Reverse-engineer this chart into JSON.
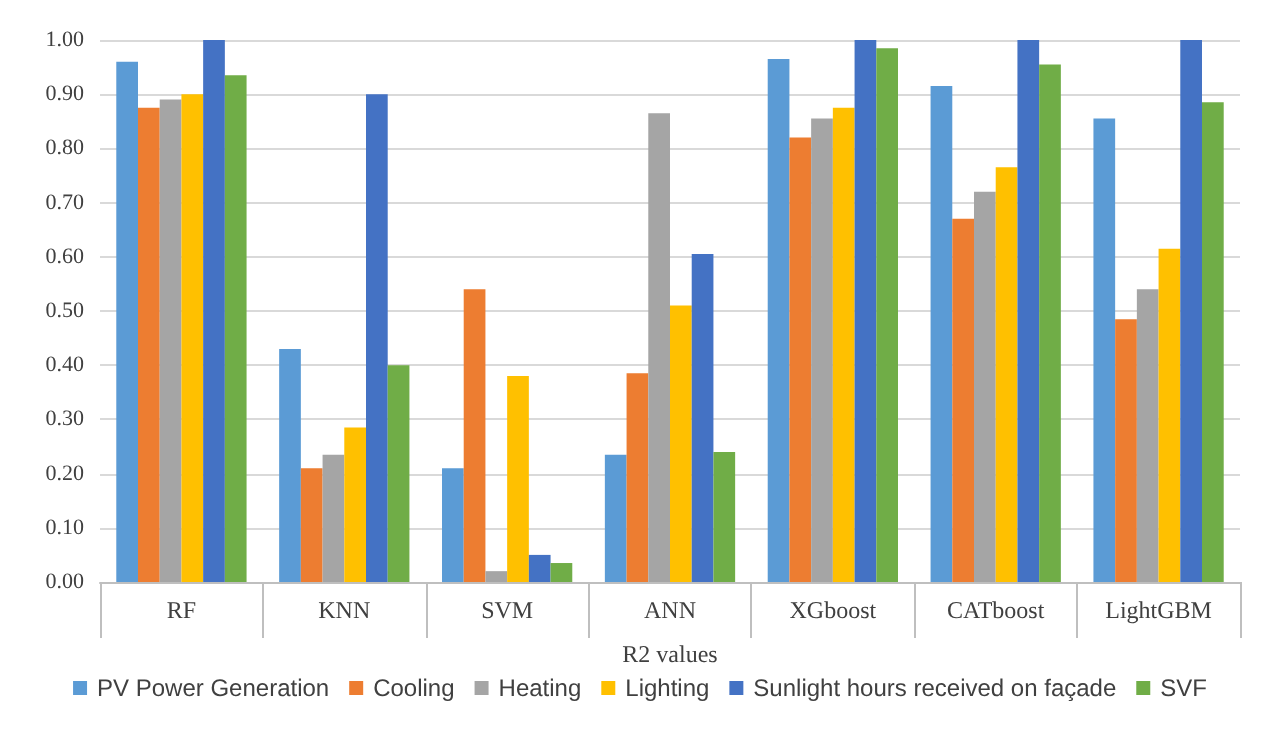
{
  "chart_data": {
    "type": "bar",
    "xlabel": "R2 values",
    "categories": [
      "RF",
      "KNN",
      "SVM",
      "ANN",
      "XGboost",
      "CATboost",
      "LightGBM"
    ],
    "series": [
      {
        "name": "PV Power Generation",
        "color": "#5b9bd5",
        "values": [
          0.96,
          0.43,
          0.21,
          0.235,
          0.965,
          0.915,
          0.855
        ]
      },
      {
        "name": "Cooling",
        "color": "#ed7d31",
        "values": [
          0.875,
          0.21,
          0.54,
          0.385,
          0.82,
          0.67,
          0.485
        ]
      },
      {
        "name": "Heating",
        "color": "#a5a5a5",
        "values": [
          0.89,
          0.235,
          0.02,
          0.865,
          0.855,
          0.72,
          0.54
        ]
      },
      {
        "name": "Lighting",
        "color": "#ffc000",
        "values": [
          0.9,
          0.285,
          0.38,
          0.51,
          0.875,
          0.765,
          0.615
        ]
      },
      {
        "name": "Sunlight hours received on façade",
        "color": "#4472c4",
        "values": [
          1.0,
          0.9,
          0.05,
          0.605,
          1.0,
          1.0,
          1.0
        ]
      },
      {
        "name": "SVF",
        "color": "#70ad47",
        "values": [
          0.935,
          0.4,
          0.035,
          0.24,
          0.985,
          0.955,
          0.885
        ]
      }
    ],
    "ylim": [
      0,
      1
    ],
    "yticks": [
      {
        "value": 0,
        "label": "0.00"
      },
      {
        "value": 0.1,
        "label": "0.10"
      },
      {
        "value": 0.2,
        "label": "0.20"
      },
      {
        "value": 0.3,
        "label": "0.30"
      },
      {
        "value": 0.4,
        "label": "0.40"
      },
      {
        "value": 0.5,
        "label": "0.50"
      },
      {
        "value": 0.6,
        "label": "0.60"
      },
      {
        "value": 0.7,
        "label": "0.70"
      },
      {
        "value": 0.8,
        "label": "0.80"
      },
      {
        "value": 0.9,
        "label": "0.90"
      },
      {
        "value": 1,
        "label": "1.00"
      }
    ],
    "grid": "y",
    "legend": "bottom"
  }
}
